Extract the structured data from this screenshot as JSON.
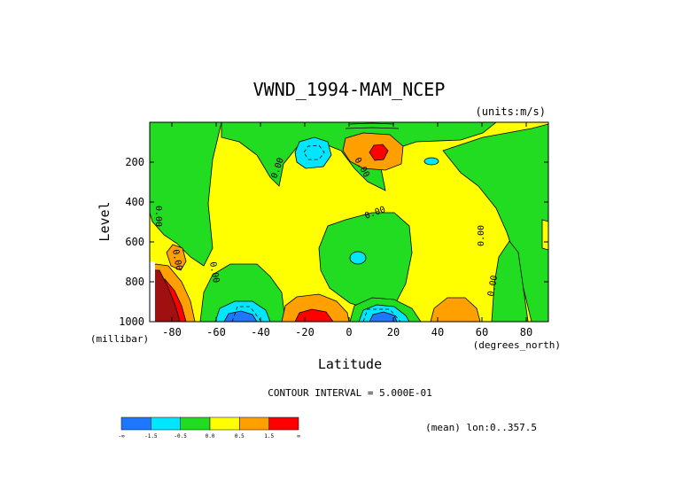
{
  "chart_data": {
    "type": "heatmap",
    "title": "VWND_1994-MAM_NCEP",
    "units": "(units:m/s)",
    "xlabel": "Latitude",
    "x_units": "(degrees_north)",
    "ylabel": "Level",
    "y_units": "(millibar)",
    "xlim": [
      -90,
      90
    ],
    "ylim": [
      1000,
      0
    ],
    "x_ticks": [
      -80,
      -60,
      -40,
      -20,
      0,
      20,
      40,
      60,
      80
    ],
    "x_tick_labels": [
      "-80",
      "-60",
      "-40",
      "-20",
      "0",
      "20",
      "40",
      "60",
      "80"
    ],
    "y_ticks": [
      200,
      400,
      600,
      800,
      1000
    ],
    "y_tick_labels": [
      "200",
      "400",
      "600",
      "800",
      "1000"
    ],
    "contour_interval_text": "CONTOUR INTERVAL = 5.000E-01",
    "mean_text": "(mean) lon:0..357.5",
    "zero_contour_label": "0.00",
    "colors": {
      "lt_neg1_5": "#1e78ff",
      "neg1_5_to_neg0_5": "#00e6ff",
      "neg0_5_to_0": "#22dc22",
      "zero_to_0_5": "#ffff00",
      "0_5_to_1_5": "#ffa000",
      "1_5_to_2_5": "#ff0000",
      "gt_2_5": "#a01010"
    },
    "colorbar": {
      "colors": [
        "#1e78ff",
        "#00e6ff",
        "#22dc22",
        "#ffff00",
        "#ffa000",
        "#ff0000"
      ],
      "labels": [
        "-∞",
        "-1.5",
        "-0.5",
        "0.0",
        "0.5",
        "1.5",
        "∞"
      ]
    },
    "cells": [
      {
        "lat": [
          -90,
          -83
        ],
        "lev": [
          650,
          1000
        ],
        "band": "gt_2_5"
      },
      {
        "lat": [
          -83,
          -78
        ],
        "lev": [
          700,
          1000
        ],
        "band": "1_5_to_2_5"
      },
      {
        "lat": [
          -16,
          -10
        ],
        "lev": [
          950,
          1000
        ],
        "band": "1_5_to_2_5"
      },
      {
        "lat": [
          10,
          16
        ],
        "lev": [
          130,
          190
        ],
        "band": "1_5_to_2_5"
      },
      {
        "lat": [
          -57,
          -47
        ],
        "lev": [
          950,
          1000
        ],
        "band": "lt_neg1_5"
      },
      {
        "lat": [
          10,
          18
        ],
        "lev": [
          950,
          1000
        ],
        "band": "lt_neg1_5"
      }
    ]
  },
  "colorbar_title": ""
}
